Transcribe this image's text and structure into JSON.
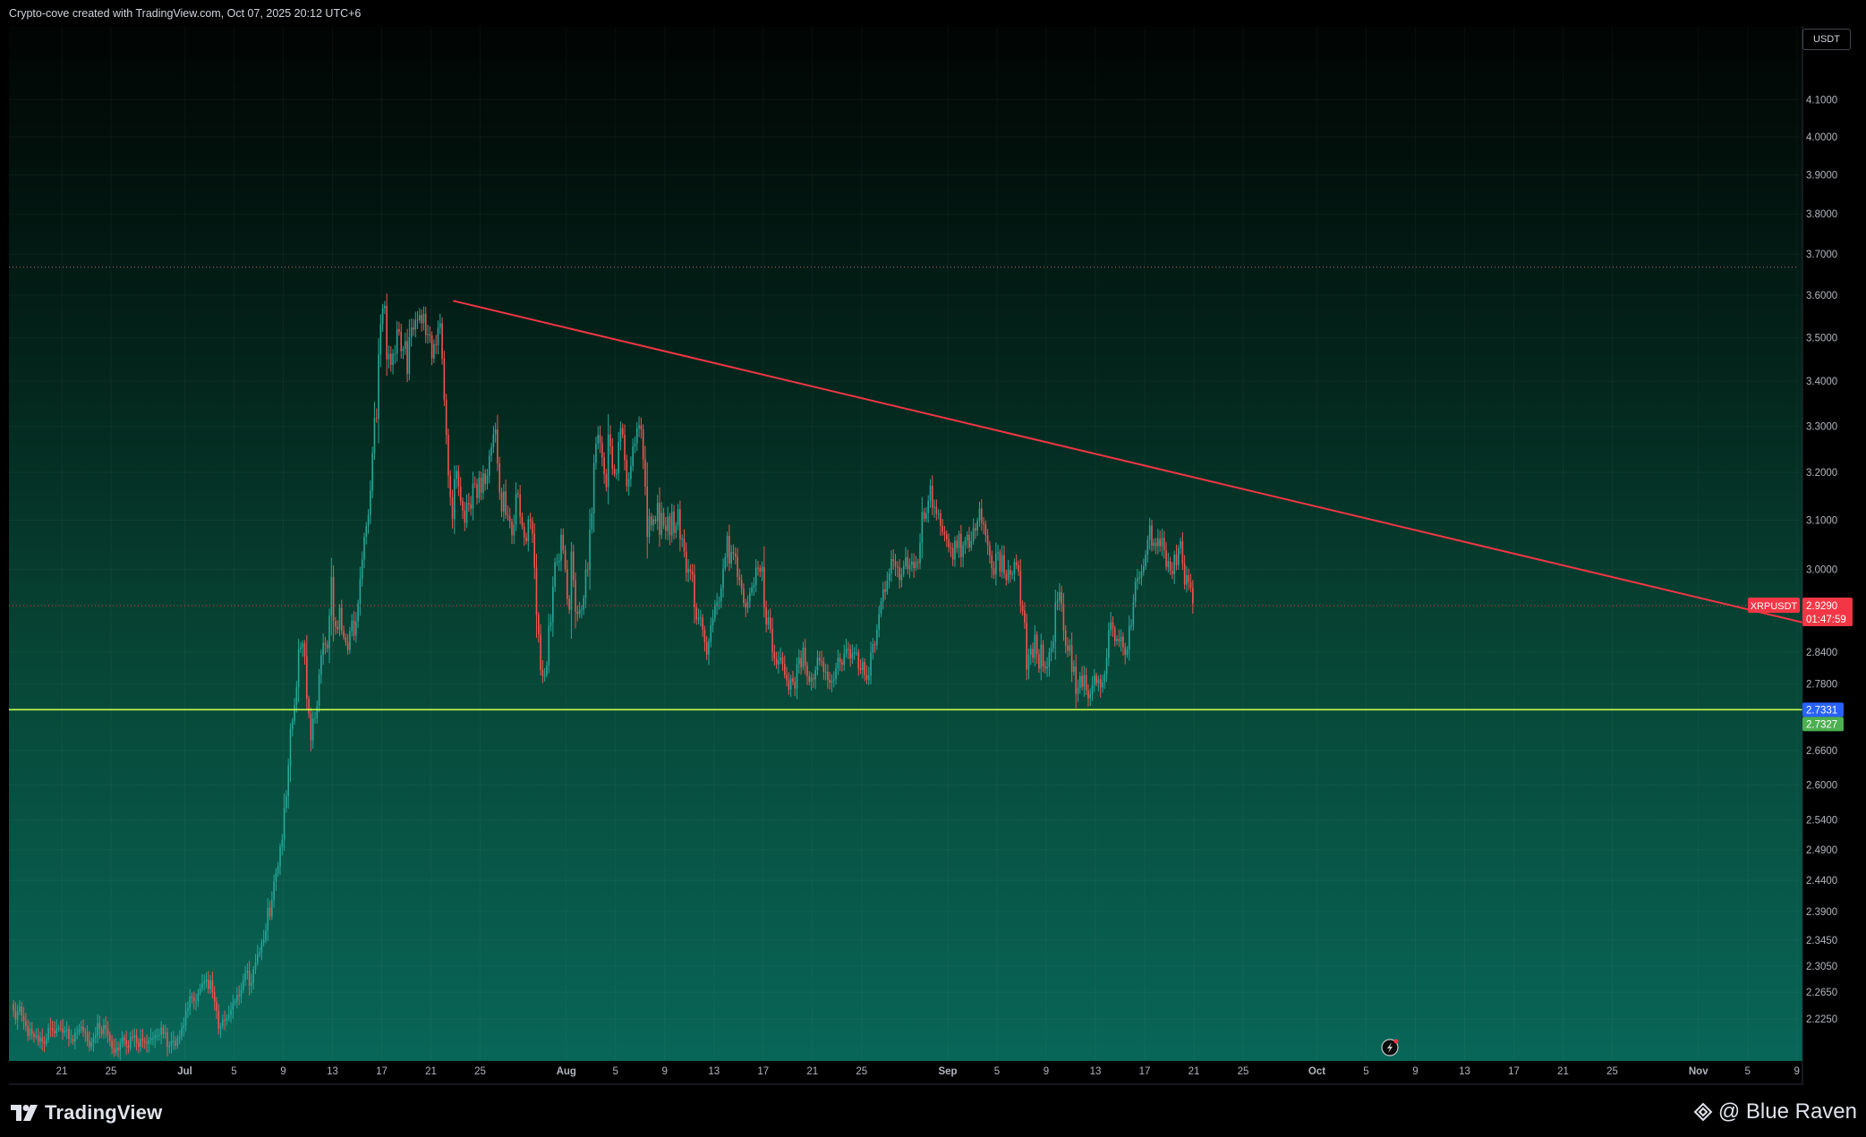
{
  "header": {
    "text": "Crypto-cove created with TradingView.com, Oct 07, 2025 20:12 UTC+6"
  },
  "currency_label": "USDT",
  "footer": {
    "logo_text": "TradingView",
    "brand_text": "@ Blue Raven"
  },
  "colors": {
    "up": "#26a69a",
    "down": "#ef5350",
    "trendline": "#f23645",
    "support": "#c6ff4a",
    "bg_top": "#010403",
    "bg_bottom": "#08685a",
    "price_tag": "#f23645",
    "blue_tag": "#2962ff",
    "green_tag": "#4caf50"
  },
  "chart_data": {
    "type": "candlestick",
    "symbol": "XRPUSDT",
    "y_axis": {
      "scale": "log",
      "ylim": [
        2.195,
        4.17
      ],
      "tick_labels": [
        "4.1000",
        "4.0000",
        "3.9000",
        "3.8000",
        "3.7000",
        "3.6000",
        "3.5000",
        "3.4000",
        "3.3000",
        "3.2000",
        "3.1000",
        "3.0000",
        "2.8400",
        "2.7800",
        "2.6600",
        "2.6000",
        "2.5400",
        "2.4900",
        "2.4400",
        "2.3900",
        "2.3450",
        "2.3050",
        "2.2650",
        "2.2250"
      ],
      "tick_values": [
        4.1,
        4.0,
        3.9,
        3.8,
        3.7,
        3.6,
        3.5,
        3.4,
        3.3,
        3.2,
        3.1,
        3.0,
        2.84,
        2.78,
        2.66,
        2.6,
        2.54,
        2.49,
        2.44,
        2.39,
        2.345,
        2.305,
        2.265,
        2.225
      ]
    },
    "x_axis": {
      "start_date": "Jun 17",
      "label_step_days": 4,
      "tick_labels": [
        "21",
        "25",
        "Jul",
        "5",
        "9",
        "13",
        "17",
        "21",
        "25",
        "Aug",
        "5",
        "9",
        "13",
        "17",
        "21",
        "25",
        "Sep",
        "5",
        "9",
        "13",
        "17",
        "21",
        "25",
        "Oct",
        "5",
        "9",
        "13",
        "17",
        "21",
        "25",
        "Nov",
        "5",
        "9"
      ],
      "tick_day_offsets": [
        4,
        8,
        14,
        18,
        22,
        26,
        30,
        34,
        38,
        45,
        49,
        53,
        57,
        61,
        65,
        69,
        76,
        80,
        84,
        88,
        92,
        96,
        100,
        106,
        110,
        114,
        118,
        122,
        126,
        130,
        137,
        141,
        145
      ]
    },
    "closes_4h": [
      2.238,
      2.224,
      2.236,
      2.244,
      2.23,
      2.222,
      2.215,
      2.2,
      2.211,
      2.203,
      2.199,
      2.201,
      2.192,
      2.198,
      2.192,
      2.189,
      2.195,
      2.212,
      2.211,
      2.208,
      2.204,
      2.211,
      2.212,
      2.211,
      2.205,
      2.208,
      2.21,
      2.196,
      2.196,
      2.192,
      2.204,
      2.205,
      2.21,
      2.214,
      2.207,
      2.205,
      2.193,
      2.184,
      2.191,
      2.198,
      2.201,
      2.219,
      2.21,
      2.203,
      2.216,
      2.21,
      2.202,
      2.193,
      2.182,
      2.176,
      2.183,
      2.179,
      2.189,
      2.198,
      2.194,
      2.187,
      2.183,
      2.199,
      2.198,
      2.201,
      2.19,
      2.184,
      2.196,
      2.193,
      2.191,
      2.189,
      2.194,
      2.197,
      2.197,
      2.201,
      2.201,
      2.202,
      2.213,
      2.203,
      2.205,
      2.184,
      2.186,
      2.193,
      2.193,
      2.186,
      2.197,
      2.199,
      2.212,
      2.216,
      2.237,
      2.241,
      2.259,
      2.257,
      2.252,
      2.252,
      2.264,
      2.271,
      2.278,
      2.281,
      2.284,
      2.27,
      2.283,
      2.265,
      2.251,
      2.237,
      2.211,
      2.215,
      2.224,
      2.223,
      2.226,
      2.231,
      2.239,
      2.249,
      2.251,
      2.261,
      2.259,
      2.269,
      2.283,
      2.294,
      2.298,
      2.275,
      2.279,
      2.3,
      2.31,
      2.323,
      2.326,
      2.341,
      2.345,
      2.36,
      2.396,
      2.382,
      2.409,
      2.438,
      2.452,
      2.463,
      2.495,
      2.507,
      2.56,
      2.581,
      2.633,
      2.699,
      2.713,
      2.742,
      2.774,
      2.845,
      2.849,
      2.856,
      2.832,
      2.753,
      2.726,
      2.678,
      2.717,
      2.718,
      2.74,
      2.798,
      2.834,
      2.857,
      2.854,
      2.847,
      2.91,
      2.985,
      2.899,
      2.888,
      2.883,
      2.925,
      2.88,
      2.868,
      2.858,
      2.844,
      2.88,
      2.9,
      2.871,
      2.898,
      2.933,
      2.981,
      3.02,
      3.066,
      3.088,
      3.111,
      3.161,
      3.241,
      3.318,
      3.317,
      3.461,
      3.532,
      3.569,
      3.575,
      3.45,
      3.463,
      3.437,
      3.463,
      3.463,
      3.52,
      3.514,
      3.469,
      3.474,
      3.492,
      3.417,
      3.501,
      3.524,
      3.519,
      3.542,
      3.541,
      3.553,
      3.534,
      3.556,
      3.506,
      3.508,
      3.505,
      3.452,
      3.485,
      3.483,
      3.523,
      3.534,
      3.452,
      3.359,
      3.281,
      3.194,
      3.148,
      3.103,
      3.186,
      3.203,
      3.17,
      3.14,
      3.12,
      3.095,
      3.136,
      3.133,
      3.124,
      3.177,
      3.175,
      3.146,
      3.189,
      3.157,
      3.198,
      3.176,
      3.193,
      3.236,
      3.254,
      3.282,
      3.293,
      3.219,
      3.158,
      3.118,
      3.16,
      3.111,
      3.109,
      3.097,
      3.069,
      3.091,
      3.156,
      3.154,
      3.107,
      3.087,
      3.065,
      3.057,
      3.102,
      3.098,
      3.072,
      3.004,
      2.911,
      2.874,
      2.806,
      2.795,
      2.797,
      2.815,
      2.89,
      2.897,
      2.966,
      3.014,
      3.015,
      3.018,
      3.07,
      3.039,
      3.001,
      2.942,
      2.921,
      3.036,
      2.979,
      2.917,
      2.913,
      2.92,
      2.922,
      2.944,
      3.0,
      2.999,
      3.081,
      3.114,
      3.22,
      3.262,
      3.281,
      3.263,
      3.233,
      3.197,
      3.169,
      3.282,
      3.256,
      3.208,
      3.197,
      3.198,
      3.266,
      3.296,
      3.281,
      3.226,
      3.17,
      3.186,
      3.214,
      3.256,
      3.263,
      3.296,
      3.302,
      3.293,
      3.228,
      3.17,
      3.066,
      3.108,
      3.09,
      3.102,
      3.098,
      3.136,
      3.07,
      3.115,
      3.089,
      3.078,
      3.108,
      3.069,
      3.118,
      3.074,
      3.089,
      3.123,
      3.061,
      3.062,
      3.036,
      2.994,
      3.001,
      2.996,
      2.99,
      2.926,
      2.902,
      2.906,
      2.906,
      2.883,
      2.859,
      2.835,
      2.86,
      2.891,
      2.904,
      2.93,
      2.935,
      2.937,
      2.963,
      3.002,
      3.025,
      3.068,
      3.012,
      3.035,
      3.032,
      3.026,
      2.985,
      2.979,
      2.962,
      2.934,
      2.925,
      2.937,
      2.954,
      2.965,
      2.969,
      3.004,
      3.003,
      2.996,
      3.005,
      2.925,
      2.892,
      2.906,
      2.884,
      2.84,
      2.828,
      2.817,
      2.824,
      2.83,
      2.818,
      2.797,
      2.787,
      2.77,
      2.791,
      2.784,
      2.772,
      2.817,
      2.829,
      2.811,
      2.848,
      2.815,
      2.795,
      2.784,
      2.791,
      2.789,
      2.806,
      2.829,
      2.824,
      2.822,
      2.803,
      2.803,
      2.788,
      2.783,
      2.787,
      2.789,
      2.809,
      2.829,
      2.821,
      2.816,
      2.837,
      2.846,
      2.845,
      2.828,
      2.838,
      2.839,
      2.839,
      2.809,
      2.806,
      2.821,
      2.797,
      2.788,
      2.796,
      2.839,
      2.855,
      2.853,
      2.882,
      2.913,
      2.937,
      2.961,
      2.956,
      2.978,
      2.992,
      3.021,
      3.017,
      3.006,
      3.004,
      2.979,
      2.991,
      3.007,
      3.025,
      3.001,
      3.009,
      3.016,
      3.003,
      3.015,
      3.013,
      3.053,
      3.117,
      3.103,
      3.115,
      3.14,
      3.172,
      3.126,
      3.128,
      3.114,
      3.114,
      3.088,
      3.076,
      3.071,
      3.061,
      3.045,
      3.043,
      3.02,
      3.058,
      3.043,
      3.072,
      3.025,
      3.049,
      3.059,
      3.07,
      3.044,
      3.057,
      3.084,
      3.079,
      3.099,
      3.124,
      3.095,
      3.091,
      3.069,
      3.049,
      3.028,
      3.003,
      2.99,
      3.033,
      3.035,
      2.995,
      3.029,
      2.992,
      2.979,
      3.0,
      2.99,
      2.991,
      3.015,
      3.009,
      2.997,
      2.93,
      2.919,
      2.896,
      2.807,
      2.835,
      2.846,
      2.829,
      2.873,
      2.836,
      2.809,
      2.854,
      2.813,
      2.809,
      2.812,
      2.84,
      2.847,
      2.859,
      2.935,
      2.938,
      2.955,
      2.932,
      2.881,
      2.852,
      2.842,
      2.853,
      2.803,
      2.813,
      2.762,
      2.773,
      2.795,
      2.775,
      2.797,
      2.769,
      2.754,
      2.762,
      2.778,
      2.796,
      2.782,
      2.789,
      2.774,
      2.783,
      2.799,
      2.829,
      2.881,
      2.897,
      2.885,
      2.861,
      2.865,
      2.86,
      2.869,
      2.849,
      2.835,
      2.845,
      2.89,
      2.89,
      2.936,
      2.976,
      2.982,
      2.984,
      2.996,
      3.006,
      3.03,
      3.06,
      3.089,
      3.048,
      3.054,
      3.047,
      3.062,
      3.047,
      3.064,
      3.039,
      3.005,
      3.017,
      2.997,
      2.991,
      3.03,
      3.009,
      3.043,
      3.057,
      3.011,
      2.97,
      2.989,
      2.975,
      2.964,
      2.933
    ],
    "current_price": 2.929,
    "price_label": "2.9290",
    "countdown": "01:47:59",
    "support_prices": [
      2.7331,
      2.7327
    ],
    "support_labels": [
      "2.7331",
      "2.7327"
    ],
    "dotted_high": 3.668,
    "trendline": {
      "start": {
        "day": 35.8,
        "price": 3.587
      },
      "end": {
        "day": 146.6,
        "price": 2.89
      }
    }
  }
}
